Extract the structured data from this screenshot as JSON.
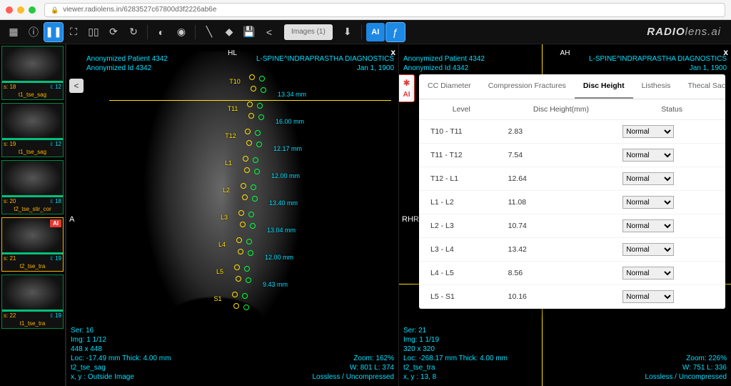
{
  "browser": {
    "url": "viewer.radiolens.in/6283527c67800d3f2226ab6e"
  },
  "brand": {
    "prefix": "RADIO",
    "suffix": "lens.ai"
  },
  "toolbar": {
    "images_label": "Images (1)",
    "ai_label": "AI"
  },
  "thumbs": [
    {
      "s": "s: 18",
      "i": "i: 12",
      "label": "t1_tse_sag",
      "active": false,
      "ai": false
    },
    {
      "s": "s: 19",
      "i": "i: 12",
      "label": "t1_tse_sag",
      "active": false,
      "ai": false
    },
    {
      "s": "s: 20",
      "i": "i: 18",
      "label": "t2_tse_stir_cor",
      "active": false,
      "ai": false
    },
    {
      "s": "s: 21",
      "i": "i: 19",
      "label": "t2_tse_tra",
      "active": true,
      "ai": true
    },
    {
      "s": "s: 22",
      "i": "i: 19",
      "label": "t1_tse_tra",
      "active": false,
      "ai": false
    }
  ],
  "vp1": {
    "patient": "Anonymized Patient 4342",
    "patient_id": "Anonymized Id 4342",
    "top_center": "HL",
    "left_letter": "A",
    "study": "L-SPINE^INDRAPRASTHA DIAGNOSTICS",
    "date": "Jan 1, 1900",
    "bl1": "Ser: 16",
    "bl2": "Img: 1 1/12",
    "bl3": "448 x 448",
    "bl4": "Loc: -17.49 mm Thick: 4.00 mm",
    "bl5": "t2_tse_sag",
    "bl6": "x, y : Outside Image",
    "br1": "Zoom: 162%",
    "br2": "W: 801 L: 374",
    "br3": "Lossless / Uncompressed",
    "labels": [
      "T10",
      "T11",
      "T12",
      "L1",
      "L2",
      "L3",
      "L4",
      "L5",
      "S1"
    ],
    "measures": [
      "13.34 mm",
      "16.00 mm",
      "12.17 mm",
      "12.00 mm",
      "13.40 mm",
      "13.04 mm",
      "12.00 mm",
      "9.43 mm"
    ]
  },
  "vp2": {
    "patient": "Anonymized Patient 4342",
    "patient_id": "Anonymized Id 4342",
    "top_center": "AH",
    "left_letter": "RHR",
    "study": "L-SPINE^INDRAPRASTHA DIAGNOSTICS",
    "date": "Jan 1, 1900",
    "bl1": "Ser: 21",
    "bl2": "Img: 1 1/19",
    "bl3": "320 x 320",
    "bl4": "Loc: -268.17 mm Thick: 4.00 mm",
    "bl5": "t2_tse_tra",
    "bl6": "x, y : 13, 8",
    "br1": "Zoom: 226%",
    "br2": "W: 751 L: 336",
    "br3": "Lossless / Uncompressed"
  },
  "panel": {
    "tabs": [
      "CC Diameter",
      "Compression Fractures",
      "Disc Height",
      "Listhesis",
      "Thecal Sac"
    ],
    "active_tab": 2,
    "headers": [
      "Level",
      "Disc Height(mm)",
      "Status"
    ],
    "rows": [
      {
        "level": "T10 - T11",
        "val": "2.83",
        "status": "Normal"
      },
      {
        "level": "T11 - T12",
        "val": "7.54",
        "status": "Normal"
      },
      {
        "level": "T12 - L1",
        "val": "12.64",
        "status": "Normal"
      },
      {
        "level": "L1 - L2",
        "val": "11.08",
        "status": "Normal"
      },
      {
        "level": "L2 - L3",
        "val": "10.74",
        "status": "Normal"
      },
      {
        "level": "L3 - L4",
        "val": "13.42",
        "status": "Normal"
      },
      {
        "level": "L4 - L5",
        "val": "8.56",
        "status": "Normal"
      },
      {
        "level": "L5 - S1",
        "val": "10.16",
        "status": "Normal"
      }
    ]
  },
  "colors": {
    "cyan": "#00e0ff",
    "yellow": "#ffe000",
    "green": "#00ff3c",
    "accent": "#1e88e5",
    "ai_red": "#e53935"
  }
}
